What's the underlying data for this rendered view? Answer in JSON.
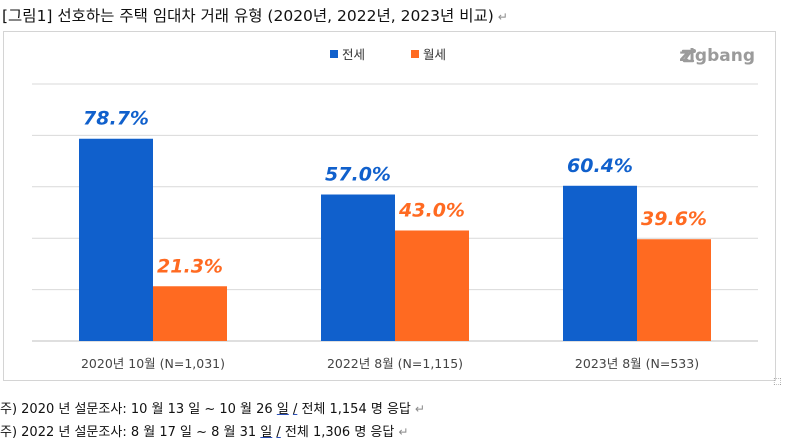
{
  "title": "[그림1] 선호하는 주택 임대차 거래 유형 (2020년, 2022년, 2023년 비교)",
  "pilcrow": "↵",
  "logo_text": "zigbang",
  "colors": {
    "jeonse": "#1060cc",
    "wolse": "#ff6a21",
    "grid": "#d9d9d9",
    "axis": "#bfbfbf"
  },
  "chart_data": {
    "type": "bar",
    "categories": [
      "2020년 10월 (N=1,031)",
      "2022년 8월 (N=1,115)",
      "2023년 8월 (N=533)"
    ],
    "series": [
      {
        "name": "전세",
        "values": [
          78.7,
          57.0,
          60.4
        ],
        "labels": [
          "78.7%",
          "57.0%",
          "60.4%"
        ]
      },
      {
        "name": "월세",
        "values": [
          21.3,
          43.0,
          39.6
        ],
        "labels": [
          "21.3%",
          "43.0%",
          "39.6%"
        ]
      }
    ],
    "ylim": [
      0,
      100
    ],
    "grid": true,
    "legend": "top-center"
  },
  "notes": [
    {
      "prefix": "주) 2020 년  설문조사: 10 월  13 일  ~ 10 월  26 ",
      "u1": "일",
      "mid": " ",
      "u2": "/",
      "suffix": " 전체  1,154 명  응답"
    },
    {
      "prefix": "주) 2022 년  설문조사: 8 월  17 일  ~ 8 월  31 ",
      "u1": "일",
      "mid": " ",
      "u2": "/",
      "suffix": " 전체  1,306 명  응답"
    }
  ]
}
